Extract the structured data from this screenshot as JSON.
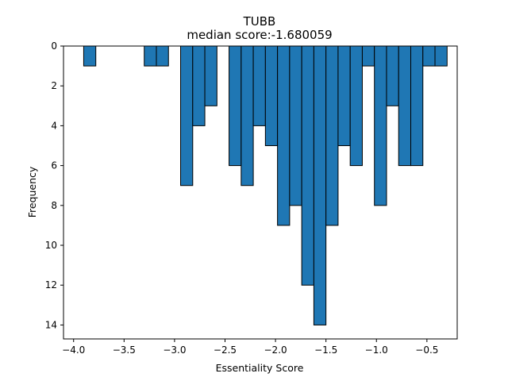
{
  "chart_data": {
    "type": "bar",
    "title": "TUBB",
    "subtitle": "median score:-1.680059",
    "xlabel": "Essentiality Score",
    "ylabel": "Frequency",
    "xlim": [
      -4.1,
      -0.2
    ],
    "ylim": [
      14.7,
      0
    ],
    "y_inverted": true,
    "grid": false,
    "bar_color": "#1f77b4",
    "edge_color": "#000000",
    "bin_width": 0.12,
    "x_ticks": [
      -4.0,
      -3.5,
      -3.0,
      -2.5,
      -2.0,
      -1.5,
      -1.0,
      -0.5
    ],
    "x_tick_labels": [
      "−4.0",
      "−3.5",
      "−3.0",
      "−2.5",
      "−2.0",
      "−1.5",
      "−1.0",
      "−0.5"
    ],
    "y_ticks": [
      0,
      2,
      4,
      6,
      8,
      10,
      12,
      14
    ],
    "y_tick_labels": [
      "0",
      "2",
      "4",
      "6",
      "8",
      "10",
      "12",
      "14"
    ],
    "bins": [
      {
        "x0": -3.9,
        "count": 1
      },
      {
        "x0": -3.3,
        "count": 1
      },
      {
        "x0": -3.18,
        "count": 1
      },
      {
        "x0": -2.94,
        "count": 7
      },
      {
        "x0": -2.82,
        "count": 4
      },
      {
        "x0": -2.7,
        "count": 3
      },
      {
        "x0": -2.46,
        "count": 6
      },
      {
        "x0": -2.34,
        "count": 7
      },
      {
        "x0": -2.22,
        "count": 4
      },
      {
        "x0": -2.1,
        "count": 5
      },
      {
        "x0": -1.98,
        "count": 9
      },
      {
        "x0": -1.86,
        "count": 8
      },
      {
        "x0": -1.74,
        "count": 12
      },
      {
        "x0": -1.62,
        "count": 14
      },
      {
        "x0": -1.5,
        "count": 9
      },
      {
        "x0": -1.38,
        "count": 5
      },
      {
        "x0": -1.26,
        "count": 6
      },
      {
        "x0": -1.14,
        "count": 1
      },
      {
        "x0": -1.02,
        "count": 8
      },
      {
        "x0": -0.9,
        "count": 3
      },
      {
        "x0": -0.78,
        "count": 6
      },
      {
        "x0": -0.66,
        "count": 6
      },
      {
        "x0": -0.54,
        "count": 1
      },
      {
        "x0": -0.42,
        "count": 1
      }
    ]
  }
}
